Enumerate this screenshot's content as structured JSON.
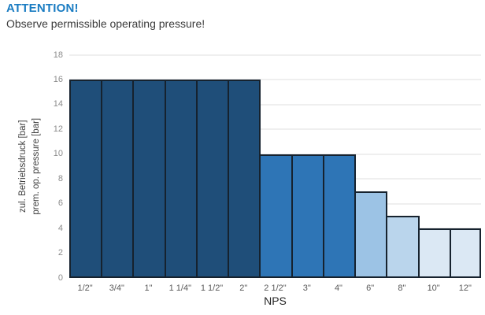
{
  "header": {
    "attention": "ATTENTION!",
    "subtitle": "Observe permissible operating pressure!",
    "attention_color": "#1a7cc2"
  },
  "chart_data": {
    "type": "bar",
    "categories": [
      "1/2\"",
      "3/4\"",
      "1\"",
      "1 1/4\"",
      "1 1/2\"",
      "2\"",
      "2 1/2\"",
      "3\"",
      "4\"",
      "6\"",
      "8\"",
      "10\"",
      "12\""
    ],
    "values": [
      16,
      16,
      16,
      16,
      16,
      16,
      10,
      10,
      10,
      7,
      5,
      4,
      4
    ],
    "bar_colors": [
      "#1f4e79",
      "#1f4e79",
      "#1f4e79",
      "#1f4e79",
      "#1f4e79",
      "#1f4e79",
      "#2e75b6",
      "#2e75b6",
      "#2e75b6",
      "#9cc3e5",
      "#bad5ec",
      "#dbe8f4",
      "#dbe8f4"
    ],
    "bar_border_color": "#16222e",
    "grid": true,
    "grid_color": "#efefef",
    "xlabel": "NPS",
    "ylabel_line1": "zul.  Betriebsdruck [bar]",
    "ylabel_line2": "prem. op. pressure [bar]",
    "ylim": [
      0,
      18
    ],
    "ytick_step": 2,
    "legend": "none"
  }
}
